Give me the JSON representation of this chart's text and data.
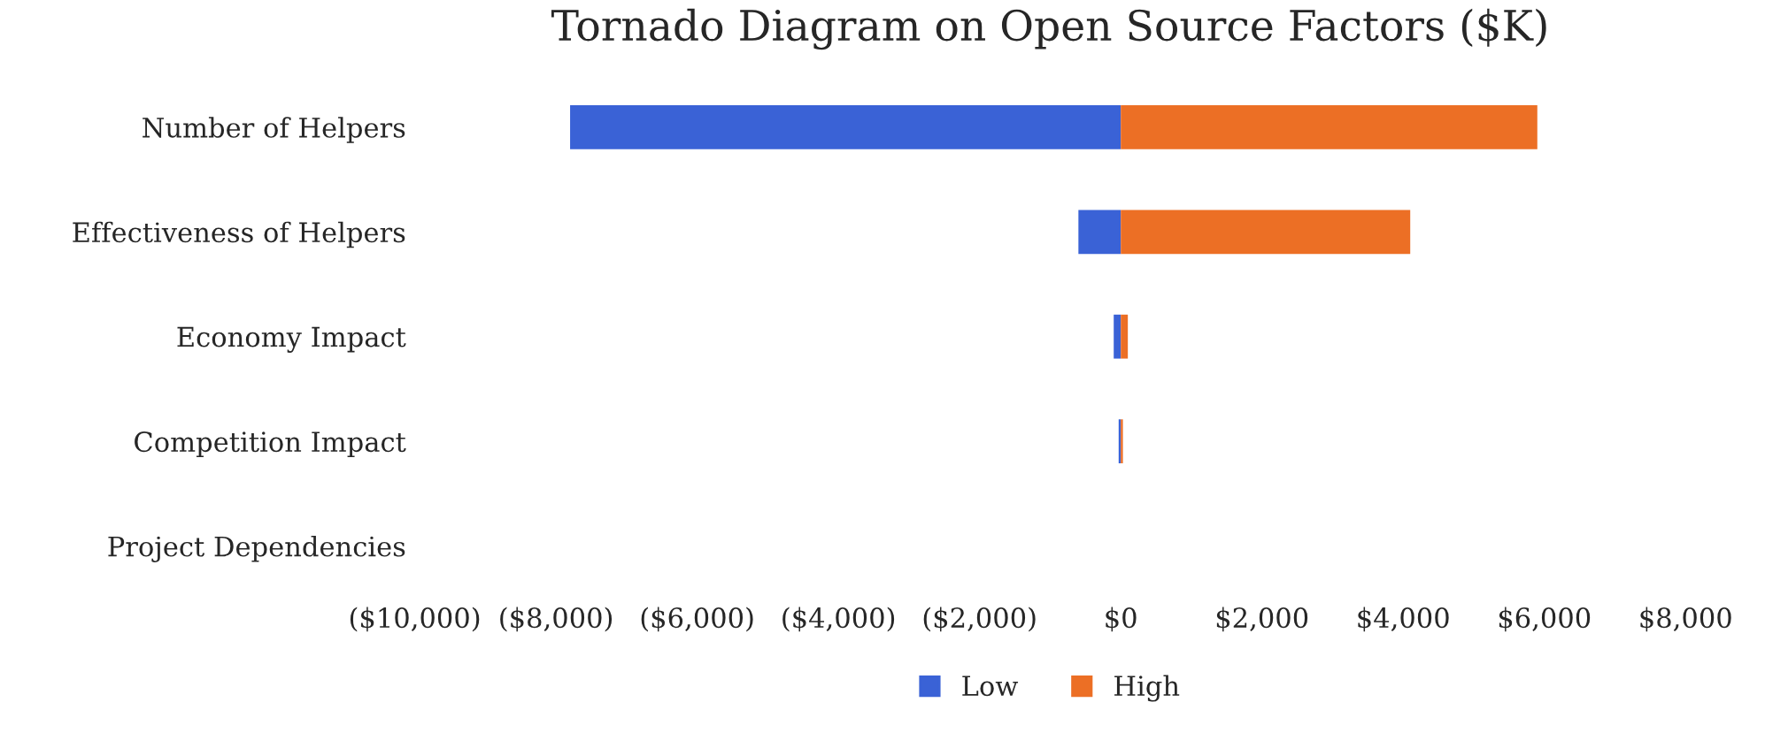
{
  "chart_data": {
    "type": "bar",
    "orientation": "horizontal",
    "stacked": true,
    "title": "Tornado Diagram on Open Source Factors ($K)",
    "categories": [
      "Number of Helpers",
      "Effectiveness of Helpers",
      "Economy Impact",
      "Competition Impact",
      "Project Dependencies"
    ],
    "series": [
      {
        "name": "Low",
        "color": "#3a62d6",
        "values": [
          -7800,
          -600,
          -100,
          -30,
          0
        ]
      },
      {
        "name": "High",
        "color": "#ec6f25",
        "values": [
          5900,
          4100,
          100,
          30,
          0
        ]
      }
    ],
    "xlim": [
      -10000,
      8000
    ],
    "xticks": [
      {
        "value": -10000,
        "label": "($10,000)"
      },
      {
        "value": -8000,
        "label": "($8,000)"
      },
      {
        "value": -6000,
        "label": "($6,000)"
      },
      {
        "value": -4000,
        "label": "($4,000)"
      },
      {
        "value": -2000,
        "label": "($2,000)"
      },
      {
        "value": 0,
        "label": "$0"
      },
      {
        "value": 2000,
        "label": "$2,000"
      },
      {
        "value": 4000,
        "label": "$4,000"
      },
      {
        "value": 6000,
        "label": "$6,000"
      },
      {
        "value": 8000,
        "label": "$8,000"
      }
    ],
    "grid": false,
    "legend": "bottom"
  }
}
